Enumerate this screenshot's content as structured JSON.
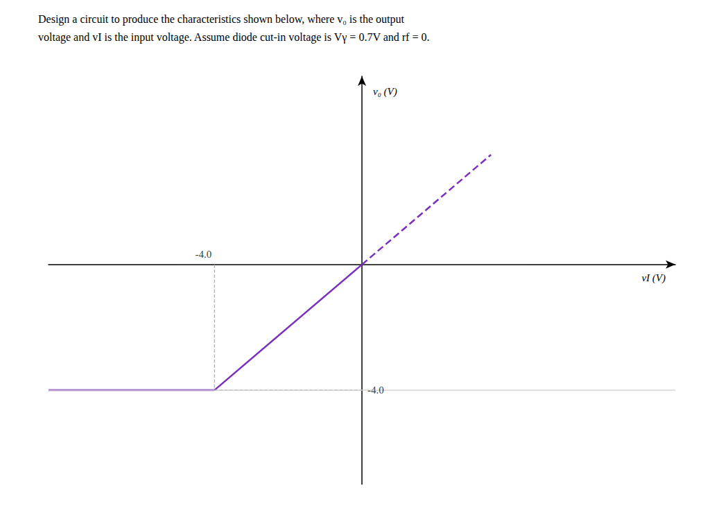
{
  "chart_data": {
    "type": "line",
    "title": "Design a circuit to produce the characteristics shown below, where v₀ is the output",
    "subtitle": "voltage and vI is the input voltage. Assume diode cut-in voltage is Vγ = 0.7V and rf = 0.",
    "xlabel": "vI (V)",
    "ylabel": "v₀ (V)",
    "xlim": [
      -8.5,
      8.5
    ],
    "ylim": [
      -7.0,
      6.0
    ],
    "tick_labels": false,
    "grid": false,
    "series": [
      {
        "x": [
          -8.5,
          -4.0,
          0.0
        ],
        "values": [
          -4.0,
          -4.0,
          0.0
        ],
        "color": "#7B2FBE",
        "line_style": "solid"
      },
      {
        "x": [
          0.0,
          3.5
        ],
        "values": [
          0.0,
          3.5
        ],
        "color": "#7B2FBE",
        "line_style": "dashed"
      },
      {
        "x": [
          -4.0,
          -4.0
        ],
        "values": [
          0.0,
          -4.0
        ],
        "color": "#aaaaaa",
        "line_style": "dashed"
      },
      {
        "x": [
          -4.0,
          0.0
        ],
        "values": [
          -4.0,
          -4.0
        ],
        "color": "#aaaaaa",
        "line_style": "dashed"
      },
      {
        "x": [
          -8.5,
          8.5
        ],
        "values": [
          -4.0,
          -4.0
        ],
        "color": "#cccccc",
        "line_style": "solid"
      }
    ],
    "annotations": [
      {
        "text": "-4.0",
        "x": -4.0,
        "y": 0.0
      },
      {
        "text": "-4.0",
        "x": 0.0,
        "y": -4.0
      }
    ]
  }
}
